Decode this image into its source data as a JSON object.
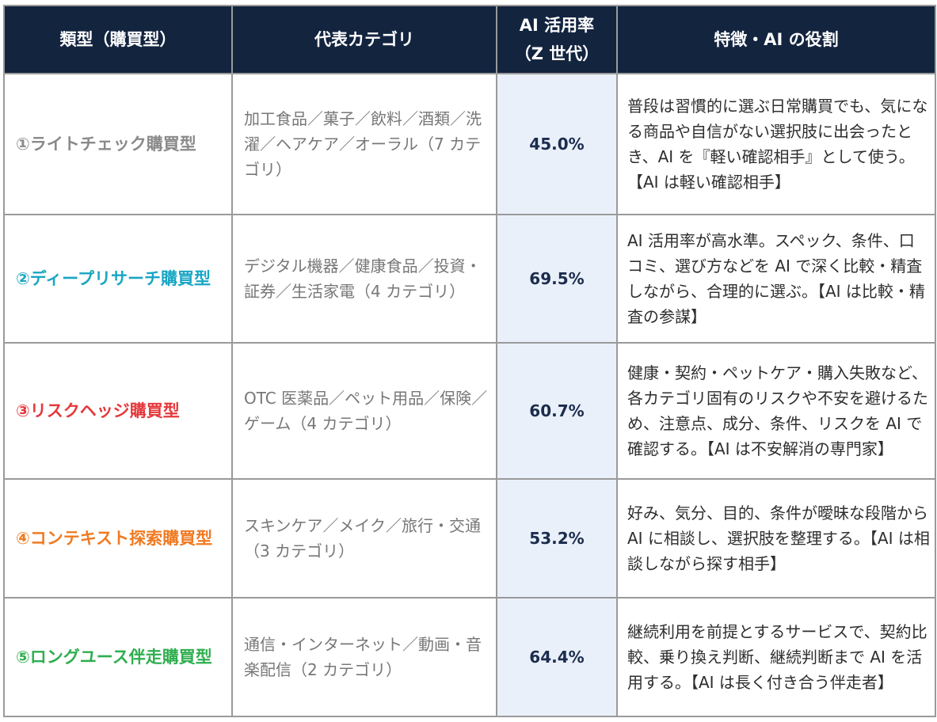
{
  "table": {
    "headers": {
      "type": "類型（購買型）",
      "category": "代表カテゴリ",
      "rate_line1": "AI 活用率",
      "rate_line2": "（Z 世代）",
      "role": "特徴・AI の役割"
    },
    "rows": [
      {
        "type": "①ライトチェック購買型",
        "type_color": "#8a8a8a",
        "category": "加工食品／菓子／飲料／酒類／洗濯／ヘアケア／オーラル（7 カテゴリ）",
        "rate": "45.0%",
        "role": "普段は習慣的に選ぶ日常購買でも、気になる商品や自信がない選択肢に出会ったとき、AI を『軽い確認相手』として使う。【AI は軽い確認相手】"
      },
      {
        "type": "②ディープリサーチ購買型",
        "type_color": "#19a6c4",
        "category": "デジタル機器／健康食品／投資・証券／生活家電（4 カテゴリ）",
        "rate": "69.5%",
        "role": "AI 活用率が高水準。スペック、条件、口コミ、選び方などを AI で深く比較・精査しながら、合理的に選ぶ。【AI は比較・精査の参謀】"
      },
      {
        "type": "③リスクヘッジ購買型",
        "type_color": "#e5383b",
        "category": "OTC 医薬品／ペット用品／保険／ゲーム（4 カテゴリ）",
        "rate": "60.7%",
        "role": "健康・契約・ペットケア・購入失敗など、各カテゴリ固有のリスクや不安を避けるため、注意点、成分、条件、リスクを AI で確認する。【AI は不安解消の専門家】"
      },
      {
        "type": "④コンテキスト探索購買型",
        "type_color": "#f07a22",
        "category": "スキンケア／メイク／旅行・交通（3 カテゴリ）",
        "rate": "53.2%",
        "role": "好み、気分、目的、条件が曖昧な段階から AI に相談し、選択肢を整理する。【AI は相談しながら探す相手】"
      },
      {
        "type": "⑤ロングユース伴走購買型",
        "type_color": "#2fae4f",
        "category": "通信・インターネット／動画・音楽配信（2 カテゴリ）",
        "rate": "64.4%",
        "role": "継続利用を前提とするサービスで、契約比較、乗り換え判断、継続判断まで AI を活用する。【AI は長く付き合う伴走者】"
      }
    ]
  }
}
